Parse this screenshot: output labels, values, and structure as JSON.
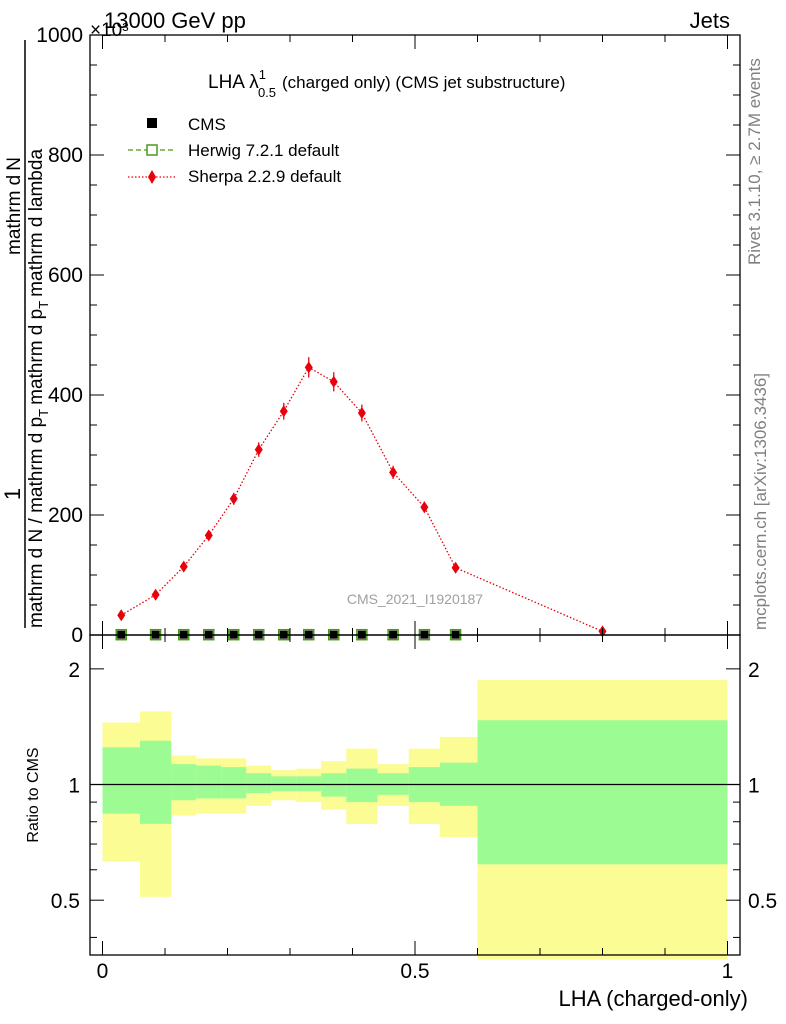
{
  "header": {
    "left": "13000 GeV pp",
    "right": "Jets",
    "exponent": "×10³"
  },
  "side_labels": {
    "rivet": "Rivet 3.1.10, ≥ 2.7M events",
    "mcplots": "mcplots.cern.ch [arXiv:1306.3436]"
  },
  "plot_title": {
    "main": "LHA λ",
    "sup": "1",
    "sub": "0.5",
    "rest": "(charged only) (CMS jet substructure)"
  },
  "watermark": "CMS_2021_I1920187",
  "legend": [
    {
      "label": "CMS",
      "marker": "filled-square",
      "color": "#000000"
    },
    {
      "label": "Herwig 7.2.1 default",
      "marker": "open-square-dashed",
      "color": "#4a9a1a"
    },
    {
      "label": "Sherpa 2.2.9 default",
      "marker": "diamond-dotted",
      "color": "#e8000b"
    }
  ],
  "axes": {
    "ylabel_top": {
      "numerator_one": "1",
      "denominator": "mathrm d N / mathrm d p",
      "denominator_sub": "T",
      "numerator_main": "mathrm d p",
      "numerator_sub": "T",
      "numerator_tail": "mathrm d lambda",
      "numerator_dN": "mathrm d",
      "numerator_N": "N"
    },
    "yticks_top": [
      "0",
      "200",
      "400",
      "600",
      "800",
      "1000"
    ],
    "ylabel_ratio": "Ratio to CMS",
    "yticks_ratio": [
      "0.5",
      "1",
      "2"
    ],
    "xticks": [
      "0",
      "0.5",
      "1"
    ],
    "xlabel": "LHA (charged-only)"
  },
  "colors": {
    "band_inner": "#9cfc93",
    "band_outer": "#fcfc94",
    "sherpa": "#e8000b",
    "herwig": "#4a9a1a",
    "cms": "#000000"
  },
  "chart_data": [
    {
      "type": "line",
      "title": "LHA λ^1_0.5 (charged only) (CMS jet substructure)",
      "xlabel": "LHA (charged-only)",
      "ylabel": "1 / (mathrm d N / mathrm d p_T) · mathrm d^2 N / (mathrm d p_T mathrm d lambda)",
      "y_scale_factor": 1000,
      "xlim": [
        -0.02,
        1.02
      ],
      "ylim": [
        0,
        1000
      ],
      "series": [
        {
          "name": "CMS",
          "x": [
            0.03,
            0.085,
            0.13,
            0.17,
            0.21,
            0.25,
            0.29,
            0.33,
            0.37,
            0.415,
            0.465,
            0.515,
            0.565
          ],
          "values": [
            0.5,
            0.5,
            0.5,
            0.5,
            0.5,
            0.5,
            0.5,
            0.5,
            0.5,
            0.5,
            0.5,
            0.5,
            0.5
          ]
        },
        {
          "name": "Herwig 7.2.1 default",
          "x": [
            0.03,
            0.085,
            0.13,
            0.17,
            0.21,
            0.25,
            0.29,
            0.33,
            0.37,
            0.415,
            0.465,
            0.515,
            0.565
          ],
          "values": [
            0.5,
            0.5,
            0.5,
            0.5,
            0.5,
            0.5,
            0.5,
            0.5,
            0.5,
            0.5,
            0.5,
            0.5,
            0.5
          ]
        },
        {
          "name": "Sherpa 2.2.9 default",
          "x": [
            0.03,
            0.085,
            0.13,
            0.17,
            0.21,
            0.25,
            0.29,
            0.33,
            0.37,
            0.415,
            0.465,
            0.515,
            0.565,
            0.8
          ],
          "values": [
            33,
            67,
            114,
            166,
            227,
            309,
            373,
            446,
            422,
            370,
            271,
            213,
            112,
            6
          ],
          "errors": [
            4,
            5,
            7,
            8,
            10,
            12,
            14,
            17,
            16,
            14,
            11,
            9,
            7,
            2
          ]
        }
      ]
    },
    {
      "type": "area",
      "ylabel": "Ratio to CMS",
      "xlabel": "LHA (charged-only)",
      "ylog": true,
      "ylim": [
        0.36,
        2.45
      ],
      "bins": [
        {
          "x0": 0.0,
          "x1": 0.06,
          "inner": [
            0.84,
            1.25
          ],
          "outer": [
            0.63,
            1.45
          ]
        },
        {
          "x0": 0.06,
          "x1": 0.11,
          "inner": [
            0.79,
            1.3
          ],
          "outer": [
            0.51,
            1.55
          ]
        },
        {
          "x0": 0.11,
          "x1": 0.15,
          "inner": [
            0.91,
            1.13
          ],
          "outer": [
            0.83,
            1.19
          ]
        },
        {
          "x0": 0.15,
          "x1": 0.19,
          "inner": [
            0.92,
            1.12
          ],
          "outer": [
            0.84,
            1.17
          ]
        },
        {
          "x0": 0.19,
          "x1": 0.23,
          "inner": [
            0.92,
            1.11
          ],
          "outer": [
            0.84,
            1.17
          ]
        },
        {
          "x0": 0.23,
          "x1": 0.27,
          "inner": [
            0.95,
            1.07
          ],
          "outer": [
            0.88,
            1.12
          ]
        },
        {
          "x0": 0.27,
          "x1": 0.31,
          "inner": [
            0.96,
            1.05
          ],
          "outer": [
            0.91,
            1.09
          ]
        },
        {
          "x0": 0.31,
          "x1": 0.35,
          "inner": [
            0.96,
            1.05
          ],
          "outer": [
            0.9,
            1.1
          ]
        },
        {
          "x0": 0.35,
          "x1": 0.39,
          "inner": [
            0.93,
            1.07
          ],
          "outer": [
            0.86,
            1.15
          ]
        },
        {
          "x0": 0.39,
          "x1": 0.44,
          "inner": [
            0.9,
            1.1
          ],
          "outer": [
            0.79,
            1.24
          ]
        },
        {
          "x0": 0.44,
          "x1": 0.49,
          "inner": [
            0.94,
            1.07
          ],
          "outer": [
            0.88,
            1.13
          ]
        },
        {
          "x0": 0.49,
          "x1": 0.54,
          "inner": [
            0.9,
            1.11
          ],
          "outer": [
            0.79,
            1.24
          ]
        },
        {
          "x0": 0.54,
          "x1": 0.6,
          "inner": [
            0.88,
            1.14
          ],
          "outer": [
            0.73,
            1.33
          ]
        },
        {
          "x0": 0.6,
          "x1": 1.0,
          "inner": [
            0.62,
            1.47
          ],
          "outer": [
            0.35,
            1.87
          ]
        }
      ],
      "reference_line": 1
    }
  ]
}
